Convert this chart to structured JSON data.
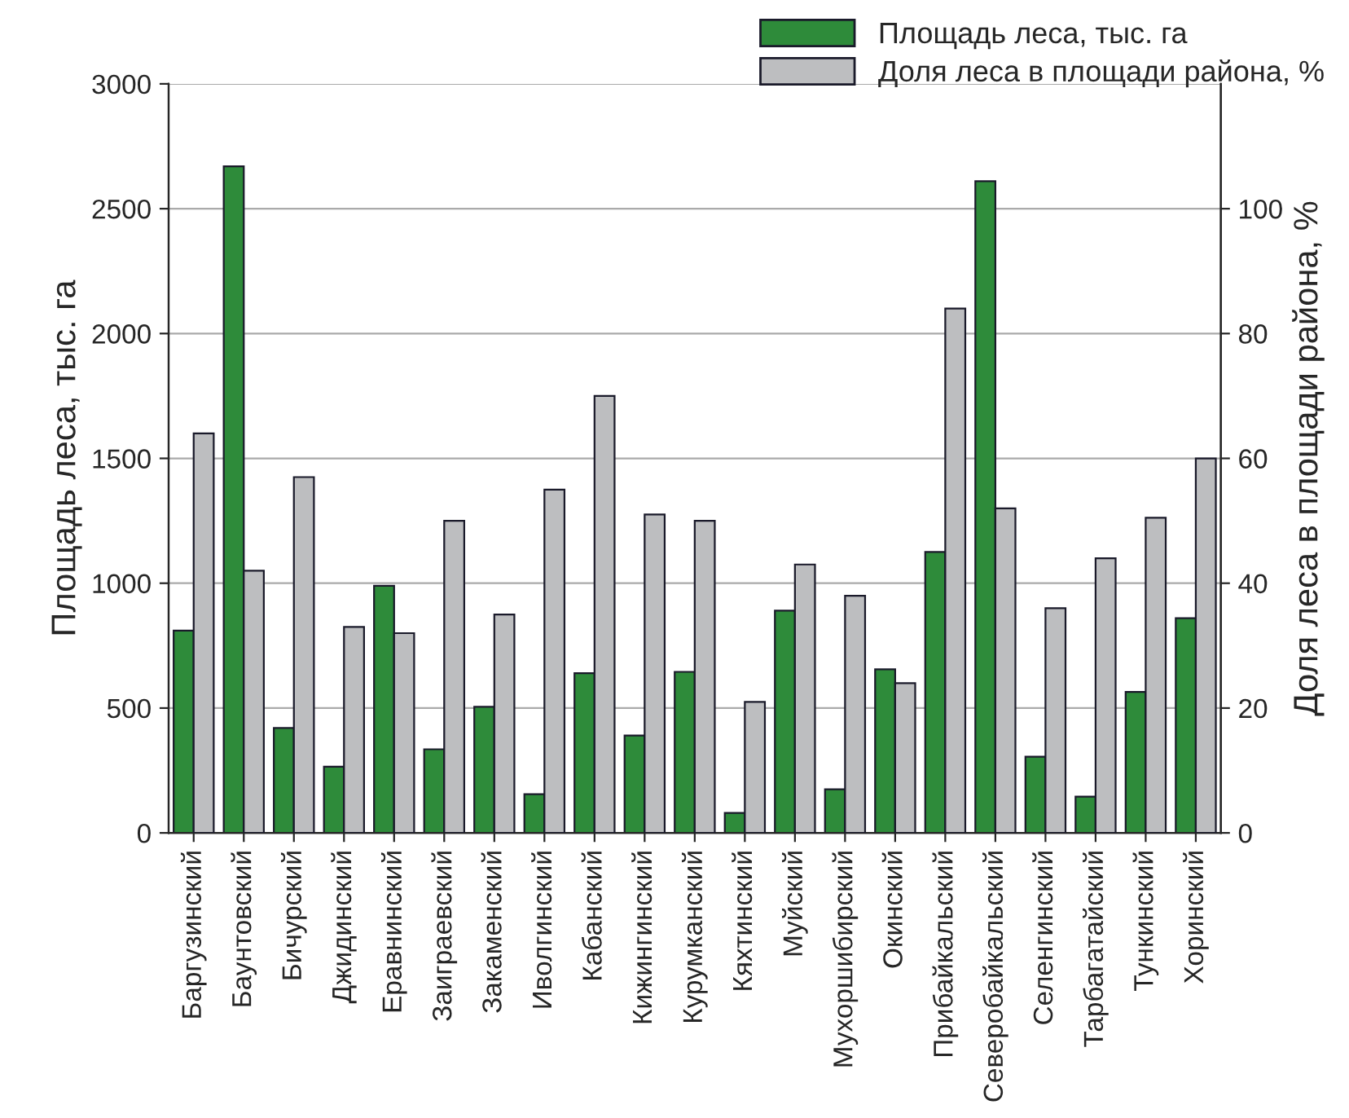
{
  "chart_data": {
    "type": "bar",
    "categories": [
      "Баргузинский",
      "Баунтовский",
      "Бичурский",
      "Джидинский",
      "Еравнинский",
      "Заиграевский",
      "Закаменский",
      "Иволгинский",
      "Кабанский",
      "Кижингинский",
      "Курумканский",
      "Кяхтинский",
      "Муйский",
      "Мухоршибирский",
      "Окинский",
      "Прибайкальский",
      "Северобайкальский",
      "Селенгинский",
      "Тарбагатайский",
      "Тункинский",
      "Хоринский"
    ],
    "series": [
      {
        "name": "Площадь леса, тыс. га",
        "color": "#2e8b3a",
        "values": [
          810,
          2670,
          420,
          265,
          990,
          335,
          505,
          155,
          640,
          390,
          645,
          80,
          890,
          175,
          655,
          1125,
          2610,
          305,
          145,
          565,
          860
        ]
      },
      {
        "name": "Доля леса в площади района, %",
        "color": "#bdbec0",
        "axis": "y2",
        "values": [
          64,
          42,
          57,
          33,
          32,
          50,
          35,
          55,
          70,
          51,
          50,
          21,
          43,
          38,
          24,
          84,
          52,
          36,
          44,
          50.5,
          60
        ]
      }
    ],
    "ylabel": "Площадь леса, тыс. га",
    "y2label": "Доля леса в площади района, %",
    "ylim": [
      0,
      3000
    ],
    "yticks": [
      0,
      500,
      1000,
      1500,
      2000,
      2500,
      3000
    ],
    "y2lim": [
      0,
      120
    ],
    "y2ticks": [
      0,
      20,
      40,
      60,
      80,
      100
    ],
    "grid": "y",
    "legend": "top right"
  }
}
